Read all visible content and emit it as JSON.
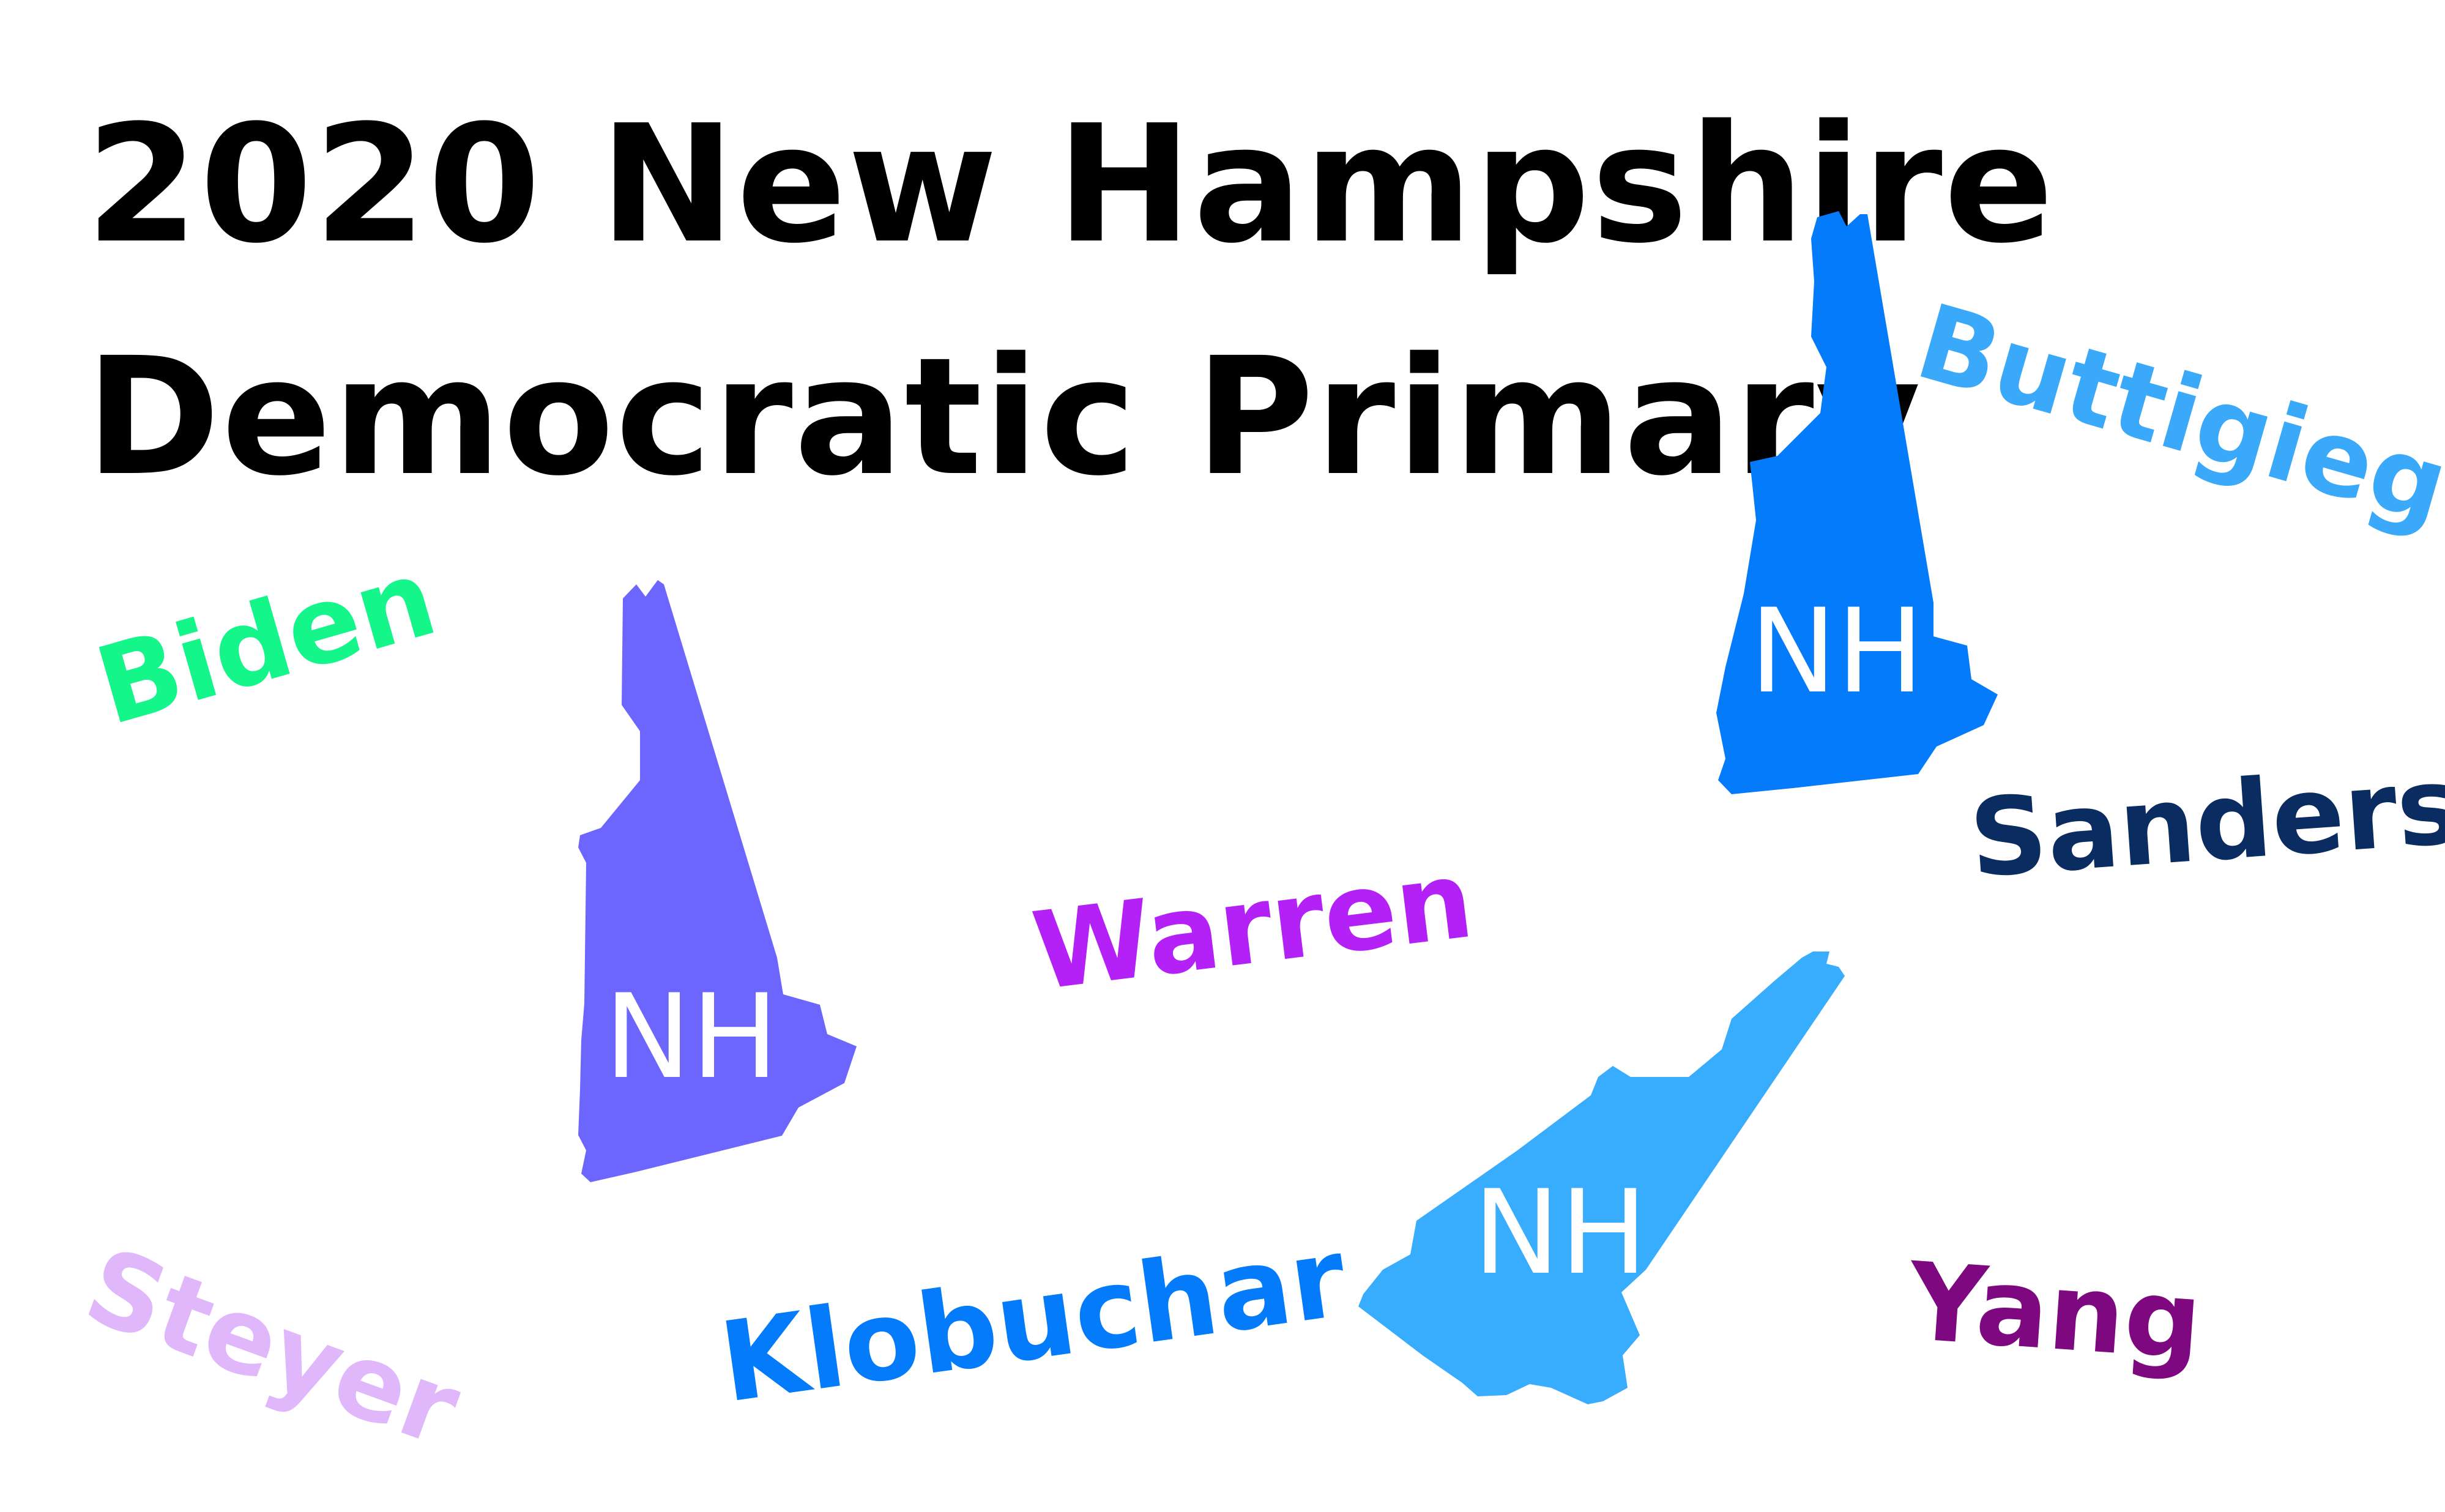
{
  "title": {
    "line1": "2020 New Hampshire",
    "line2": "Democratic Primary"
  },
  "states": [
    {
      "label": "NH",
      "color": "#6c66ff"
    },
    {
      "label": "NH",
      "color": "#037bfb"
    },
    {
      "label": "NH",
      "color": "#38acfd"
    }
  ],
  "candidates": {
    "biden": {
      "name": "Biden",
      "color": "#14f68a"
    },
    "buttigieg": {
      "name": "Buttigieg",
      "color": "#3aa9f9"
    },
    "sanders": {
      "name": "Sanders",
      "color": "#0a2c60"
    },
    "warren": {
      "name": "Warren",
      "color": "#b321f7"
    },
    "steyer": {
      "name": "Steyer",
      "color": "#e1b7fb"
    },
    "klobuchar": {
      "name": "Klobuchar",
      "color": "#037bfb"
    },
    "yang": {
      "name": "Yang",
      "color": "#7e087f"
    }
  }
}
